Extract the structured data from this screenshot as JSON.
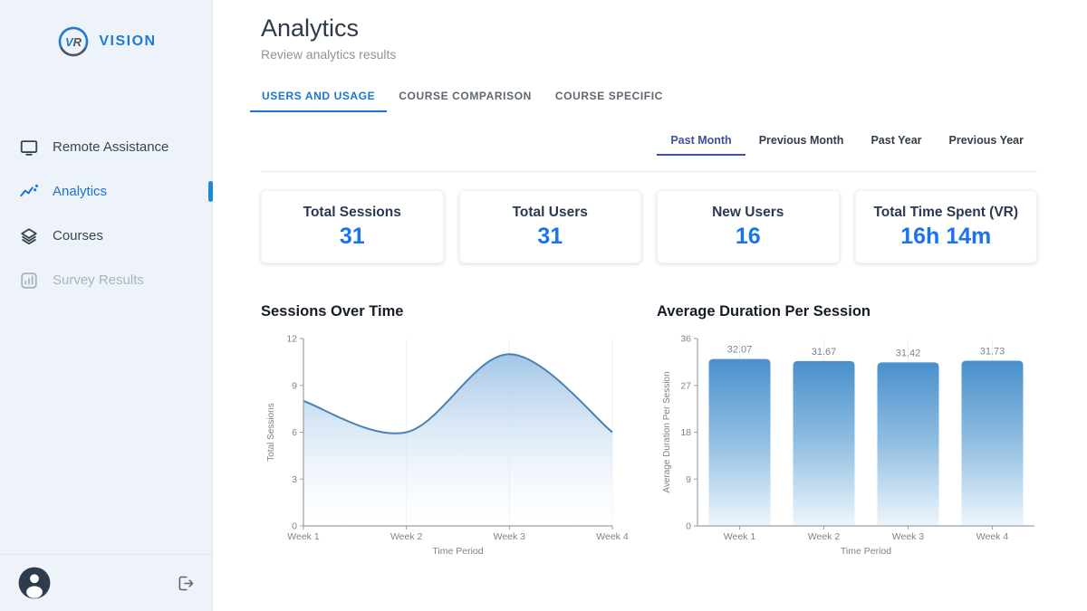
{
  "sidebar": {
    "brand": {
      "mark": {
        "v": "V",
        "r": "R"
      },
      "name": "VISION"
    },
    "items": [
      {
        "label": "Remote Assistance",
        "icon": "monitor-icon",
        "state": "default"
      },
      {
        "label": "Analytics",
        "icon": "analytics-icon",
        "state": "active"
      },
      {
        "label": "Courses",
        "icon": "layers-icon",
        "state": "default"
      },
      {
        "label": "Survey Results",
        "icon": "poll-icon",
        "state": "disabled"
      }
    ]
  },
  "header": {
    "title": "Analytics",
    "subtitle": "Review analytics results",
    "tabs": [
      {
        "label": "USERS AND USAGE",
        "active": true
      },
      {
        "label": "COURSE COMPARISON",
        "active": false
      },
      {
        "label": "COURSE SPECIFIC",
        "active": false
      }
    ]
  },
  "period_tabs": [
    {
      "label": "Past Month",
      "active": true
    },
    {
      "label": "Previous Month",
      "active": false
    },
    {
      "label": "Past Year",
      "active": false
    },
    {
      "label": "Previous Year",
      "active": false
    }
  ],
  "stats": [
    {
      "label": "Total Sessions",
      "value": "31"
    },
    {
      "label": "Total Users",
      "value": "31"
    },
    {
      "label": "New Users",
      "value": "16"
    },
    {
      "label": "Total Time Spent (VR)",
      "value": "16h 14m"
    }
  ],
  "chart_data": [
    {
      "type": "area",
      "title": "Sessions Over Time",
      "x": [
        "Week 1",
        "Week 2",
        "Week 3",
        "Week 4"
      ],
      "values": [
        8,
        6,
        11,
        6
      ],
      "xlabel": "Time Period",
      "ylabel": "Total Sessions",
      "ylim": [
        0,
        12
      ],
      "yticks": [
        0,
        3,
        6,
        9,
        12
      ],
      "grid": "faint-vertical",
      "legend": "none"
    },
    {
      "type": "bar",
      "title": "Average Duration Per Session",
      "categories": [
        "Week 1",
        "Week 2",
        "Week 3",
        "Week 4"
      ],
      "values": [
        32.07,
        31.67,
        31.42,
        31.73
      ],
      "value_labels": [
        "32.07",
        "31.67",
        "31.42",
        "31.73"
      ],
      "xlabel": "Time Period",
      "ylabel": "Average Duration Per Session",
      "ylim": [
        0,
        36
      ],
      "yticks": [
        0,
        9,
        18,
        27,
        36
      ],
      "grid": "faint-vertical",
      "legend": "none"
    }
  ],
  "colors": {
    "accent_blue": "#1976d2",
    "value_blue": "#1a73e8",
    "indigo_active": "#3d519e",
    "line_stroke": "#4b80b8",
    "area_top": "#9cc3e5",
    "area_bottom": "#ffffff",
    "bar_top": "#4a90cc",
    "bar_mid": "#92bfe2",
    "bar_bottom": "#eef6fc",
    "axis": "#9aa1a8",
    "tick_text": "#7d838c",
    "grid": "#edf1f5",
    "sidebar_bg": "#edf3f9",
    "avatar_fill": "#2e3b4d"
  }
}
